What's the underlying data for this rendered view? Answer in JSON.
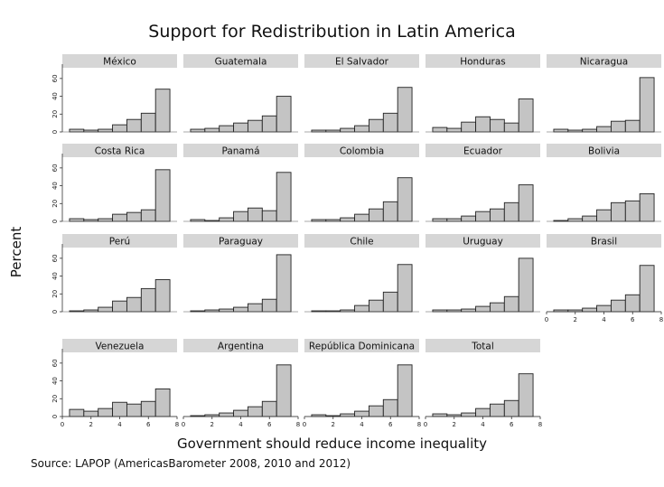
{
  "chart_data": {
    "type": "bar",
    "title": "Support for Redistribution in Latin America",
    "xlabel": "Government should reduce income inequality",
    "ylabel": "Percent",
    "note": "Source: LAPOP (AmericasBarometer 2008, 2010 and 2012)",
    "x_categories": [
      1,
      2,
      3,
      4,
      5,
      6,
      7
    ],
    "xlim": [
      0,
      8
    ],
    "ylim": [
      0,
      70
    ],
    "x_ticks": [
      "0",
      "2",
      "4",
      "6",
      "8"
    ],
    "y_ticks": [
      "0",
      "20",
      "40",
      "60"
    ],
    "grid": false,
    "colors": {
      "bar_fill": "#c4c4c4",
      "bar_stroke": "#222222",
      "header_fill": "#d6d6d6"
    },
    "panels": [
      {
        "name": "México",
        "values": [
          3,
          2,
          3,
          8,
          14,
          21,
          48
        ]
      },
      {
        "name": "Guatemala",
        "values": [
          3,
          4,
          7,
          10,
          13,
          18,
          40
        ]
      },
      {
        "name": "El Salvador",
        "values": [
          2,
          2,
          4,
          7,
          14,
          21,
          50
        ]
      },
      {
        "name": "Honduras",
        "values": [
          5,
          4,
          11,
          17,
          14,
          10,
          37
        ]
      },
      {
        "name": "Nicaragua",
        "values": [
          3,
          2,
          3,
          6,
          12,
          13,
          61
        ]
      },
      {
        "name": "Costa Rica",
        "values": [
          3,
          2,
          3,
          8,
          10,
          13,
          58
        ]
      },
      {
        "name": "Panamá",
        "values": [
          2,
          1,
          4,
          11,
          15,
          12,
          55
        ]
      },
      {
        "name": "Colombia",
        "values": [
          2,
          2,
          4,
          8,
          14,
          22,
          49
        ]
      },
      {
        "name": "Ecuador",
        "values": [
          3,
          3,
          6,
          11,
          14,
          21,
          41
        ]
      },
      {
        "name": "Bolivia",
        "values": [
          1,
          3,
          6,
          13,
          21,
          23,
          31
        ]
      },
      {
        "name": "Perú",
        "values": [
          1,
          2,
          5,
          12,
          16,
          26,
          36
        ]
      },
      {
        "name": "Paraguay",
        "values": [
          1,
          2,
          3,
          5,
          9,
          14,
          64
        ]
      },
      {
        "name": "Chile",
        "values": [
          1,
          1,
          2,
          7,
          13,
          22,
          53
        ]
      },
      {
        "name": "Uruguay",
        "values": [
          2,
          2,
          3,
          6,
          10,
          17,
          60
        ]
      },
      {
        "name": "Brasil",
        "values": [
          2,
          2,
          4,
          7,
          13,
          19,
          52
        ]
      },
      {
        "name": "Venezuela",
        "values": [
          8,
          6,
          9,
          16,
          14,
          17,
          31
        ]
      },
      {
        "name": "Argentina",
        "values": [
          1,
          2,
          4,
          7,
          11,
          17,
          58
        ]
      },
      {
        "name": "República Dominicana",
        "values": [
          2,
          1,
          3,
          6,
          12,
          19,
          58
        ]
      },
      {
        "name": "Total",
        "values": [
          3,
          2,
          4,
          9,
          14,
          18,
          48
        ]
      }
    ]
  }
}
